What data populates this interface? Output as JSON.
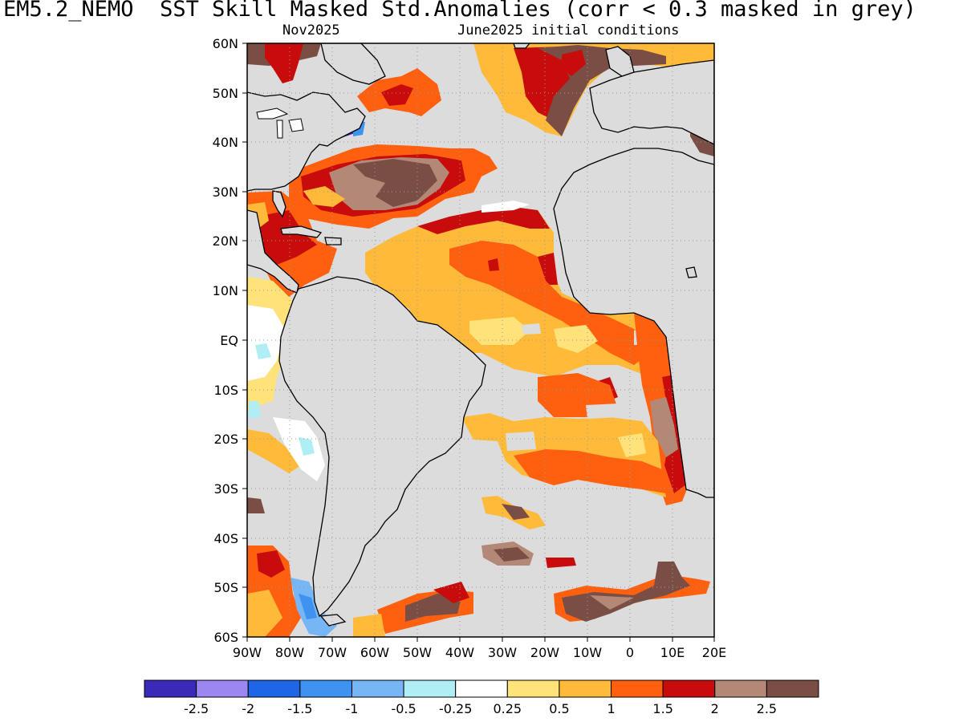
{
  "title": "EM5.2_NEMO  SST Skill Masked Std.Anomalies (corr < 0.3 masked in grey)",
  "subtitle_left": "Nov2025",
  "subtitle_right": "June2025 initial conditions",
  "map": {
    "lon_range": [
      -90,
      20
    ],
    "lat_range": [
      -60,
      60
    ],
    "mask_color": "#dcdcdc",
    "grid": "dotted",
    "lat_labels": [
      "60N",
      "50N",
      "40N",
      "30N",
      "20N",
      "10N",
      "EQ",
      "10S",
      "20S",
      "30S",
      "40S",
      "50S",
      "60S"
    ],
    "lon_labels": [
      "90W",
      "80W",
      "70W",
      "60W",
      "50W",
      "40W",
      "30W",
      "20W",
      "10W",
      "0",
      "10E",
      "20E"
    ]
  },
  "colorbar": {
    "colors": [
      "#3a2ab8",
      "#9b86f2",
      "#1f66e6",
      "#3d93ef",
      "#77b6f5",
      "#b0eef6",
      "#ffffff",
      "#ffe27a",
      "#ffba3a",
      "#ff6010",
      "#c80c0c",
      "#b48876",
      "#7a4e44"
    ],
    "labels": [
      "-2.5",
      "-2",
      "-1.5",
      "-1",
      "-0.5",
      "-0.25",
      "0.25",
      "0.5",
      "1",
      "1.5",
      "2",
      "2.5"
    ]
  }
}
